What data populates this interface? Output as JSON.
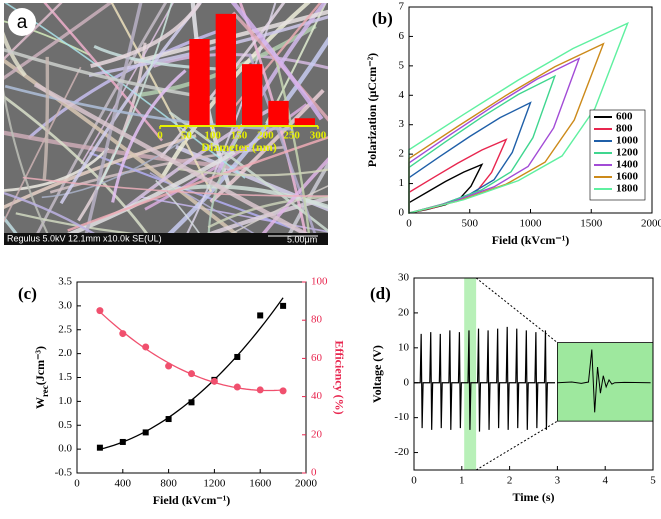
{
  "chart_data": [
    {
      "type": "histogram",
      "panel": "a",
      "caption": "Regulus 5.0kV 12.1mm x10.0k SE(UL)",
      "scale_label": "5.00μm",
      "bins": [
        50,
        100,
        150,
        200,
        250,
        300
      ],
      "counts": [
        90,
        116,
        64,
        26,
        8
      ],
      "color": "#ff0000",
      "axis_color": "#e6f000",
      "xlim": [
        0,
        300
      ],
      "xticks": [
        0,
        50,
        100,
        150,
        200,
        250,
        300
      ],
      "ylim": [
        0,
        120
      ],
      "xlabel": "Diameter (nm)"
    },
    {
      "type": "line",
      "panel": "(b)",
      "xlabel": "Field (kVcm⁻¹)",
      "ylabel": "Polarization (μCcm⁻²)",
      "xlim": [
        0,
        2000
      ],
      "xticks": [
        0,
        500,
        1000,
        1500,
        2000
      ],
      "ylim": [
        0,
        7
      ],
      "yticks": [
        0,
        1,
        2,
        3,
        4,
        5,
        6,
        7
      ],
      "legend": "lower right",
      "closed": true,
      "series": [
        {
          "name": "600",
          "color": "#000000",
          "x": [
            0,
            150,
            300,
            450,
            600,
            510,
            420,
            300,
            150,
            0
          ],
          "values": [
            0.35,
            0.71,
            1.07,
            1.39,
            1.65,
            0.91,
            0.5,
            0.28,
            0.12,
            0
          ]
        },
        {
          "name": "800",
          "color": "#e8264f",
          "x": [
            0,
            200,
            400,
            600,
            800,
            680,
            560,
            400,
            200,
            0
          ],
          "values": [
            0.7,
            1.2,
            1.69,
            2.14,
            2.5,
            1.38,
            0.75,
            0.43,
            0.18,
            0
          ]
        },
        {
          "name": "1000",
          "color": "#1f5fa8",
          "x": [
            0,
            250,
            500,
            750,
            1000,
            850,
            700,
            500,
            250,
            0
          ],
          "values": [
            1.2,
            1.91,
            2.6,
            3.24,
            3.75,
            2.06,
            1.13,
            0.64,
            0.26,
            0
          ]
        },
        {
          "name": "1200",
          "color": "#3fd68f",
          "x": [
            0,
            300,
            600,
            900,
            1200,
            1020,
            840,
            600,
            300,
            0
          ],
          "values": [
            1.55,
            2.42,
            3.26,
            4.03,
            4.65,
            2.56,
            1.4,
            0.79,
            0.33,
            0
          ]
        },
        {
          "name": "1400",
          "color": "#a24bd6",
          "x": [
            0,
            350,
            700,
            1050,
            1400,
            1190,
            980,
            700,
            350,
            0
          ],
          "values": [
            1.7,
            2.69,
            3.65,
            4.54,
            5.25,
            2.89,
            1.58,
            0.89,
            0.37,
            0
          ]
        },
        {
          "name": "1600",
          "color": "#cc8a1a",
          "x": [
            0,
            400,
            800,
            1200,
            1600,
            1360,
            1120,
            800,
            400,
            0
          ],
          "values": [
            1.85,
            2.94,
            4.0,
            4.97,
            5.75,
            3.16,
            1.73,
            0.98,
            0.4,
            0
          ]
        },
        {
          "name": "1800",
          "color": "#5ff0a0",
          "x": [
            0,
            450,
            900,
            1350,
            1800,
            1530,
            1260,
            900,
            450,
            0
          ],
          "values": [
            2.15,
            3.35,
            4.52,
            5.59,
            6.45,
            3.55,
            1.94,
            1.1,
            0.45,
            0
          ]
        }
      ]
    },
    {
      "type": "scatter",
      "panel": "(c)",
      "xlabel": "Field (kVcm⁻¹)",
      "ylabel": {
        "text": "W",
        "sub": "rec",
        "tail": "(Jcm⁻³)"
      },
      "y2label": "Efficiency (%)",
      "y2color": "#e8264f",
      "fit": "quadratic",
      "xlim": [
        0,
        2000
      ],
      "xticks": [
        0,
        400,
        800,
        1200,
        1600,
        2000
      ],
      "ylim": [
        -0.5,
        3.5
      ],
      "yticks": [
        -0.5,
        {
          "value": 0,
          "label": "0.0"
        },
        0.5,
        {
          "value": 1,
          "label": "1.0"
        },
        1.5,
        {
          "value": 2,
          "label": "2.0"
        },
        2.5,
        {
          "value": 3,
          "label": "3.0"
        },
        3.5
      ],
      "y2lim": [
        0,
        100
      ],
      "y2ticks": [
        0,
        20,
        40,
        60,
        80,
        100
      ],
      "x": [
        200,
        400,
        600,
        800,
        1000,
        1200,
        1400,
        1600,
        1800
      ],
      "series": [
        {
          "color": "#000000",
          "marker": "square",
          "values": [
            0.03,
            0.15,
            0.35,
            0.63,
            0.98,
            1.45,
            1.93,
            2.8,
            3.0
          ]
        },
        {
          "color": "#f0506e",
          "marker": "circle",
          "axis": "y2",
          "values": [
            85,
            73,
            66,
            56,
            52,
            48,
            45,
            43.5,
            43
          ]
        }
      ]
    },
    {
      "type": "line",
      "panel": "(d)",
      "xlabel": "Time (s)",
      "ylabel": "Voltage (V)",
      "xlim": [
        0,
        5
      ],
      "xticks": [
        0,
        1,
        2,
        3,
        4,
        5
      ],
      "ylim": [
        -25,
        30
      ],
      "yticks": [
        -20,
        -10,
        0,
        10,
        20,
        30
      ],
      "highlight_x": [
        1.05,
        1.3
      ],
      "highlight_color": "#b8f0b8",
      "series": [
        {
          "color": "#000000",
          "x": [
            0,
            0.13,
            0.15,
            0.17,
            0.19,
            0.33,
            0.35,
            0.37,
            0.39,
            0.53,
            0.55,
            0.57,
            0.59,
            0.73,
            0.75,
            0.77,
            0.79,
            0.93,
            0.95,
            0.97,
            0.99,
            1.13,
            1.15,
            1.17,
            1.19,
            1.33,
            1.35,
            1.37,
            1.39,
            1.53,
            1.55,
            1.57,
            1.59,
            1.73,
            1.75,
            1.77,
            1.79,
            1.93,
            1.95,
            1.97,
            1.99,
            2.13,
            2.15,
            2.17,
            2.19,
            2.33,
            2.35,
            2.37,
            2.39,
            2.53,
            2.55,
            2.57,
            2.59,
            2.73,
            2.75,
            2.77,
            2.79,
            2.95
          ],
          "values": [
            0,
            0,
            14,
            -13,
            0,
            0,
            14.5,
            -13.5,
            0,
            0,
            14,
            -13,
            0,
            0,
            15,
            -13.5,
            0,
            0,
            14.5,
            -13,
            0,
            0,
            15,
            -13.5,
            0,
            0,
            15.5,
            -14,
            0,
            0,
            15,
            -13.5,
            0,
            0,
            15.5,
            -13,
            0,
            0,
            16,
            -13.5,
            0,
            0,
            15.5,
            -13,
            0,
            0,
            15,
            -13.5,
            0,
            0,
            14.5,
            -13,
            0,
            0,
            15,
            -13.5,
            0,
            0
          ]
        }
      ],
      "inset": {
        "xlim": [
          3,
          5
        ],
        "ylim": [
          -11,
          11.5
        ],
        "color": "#9ee89e",
        "x": [
          3.0,
          3.3,
          3.5,
          3.65,
          3.72,
          3.78,
          3.84,
          3.9,
          3.96,
          4.02,
          4.08,
          4.14,
          4.2,
          4.4,
          4.95
        ],
        "values": [
          0,
          0.2,
          -0.2,
          0.2,
          9.5,
          -8.5,
          4.5,
          -3,
          2,
          -1.2,
          0.8,
          -0.4,
          0,
          0.1,
          0
        ]
      }
    }
  ]
}
